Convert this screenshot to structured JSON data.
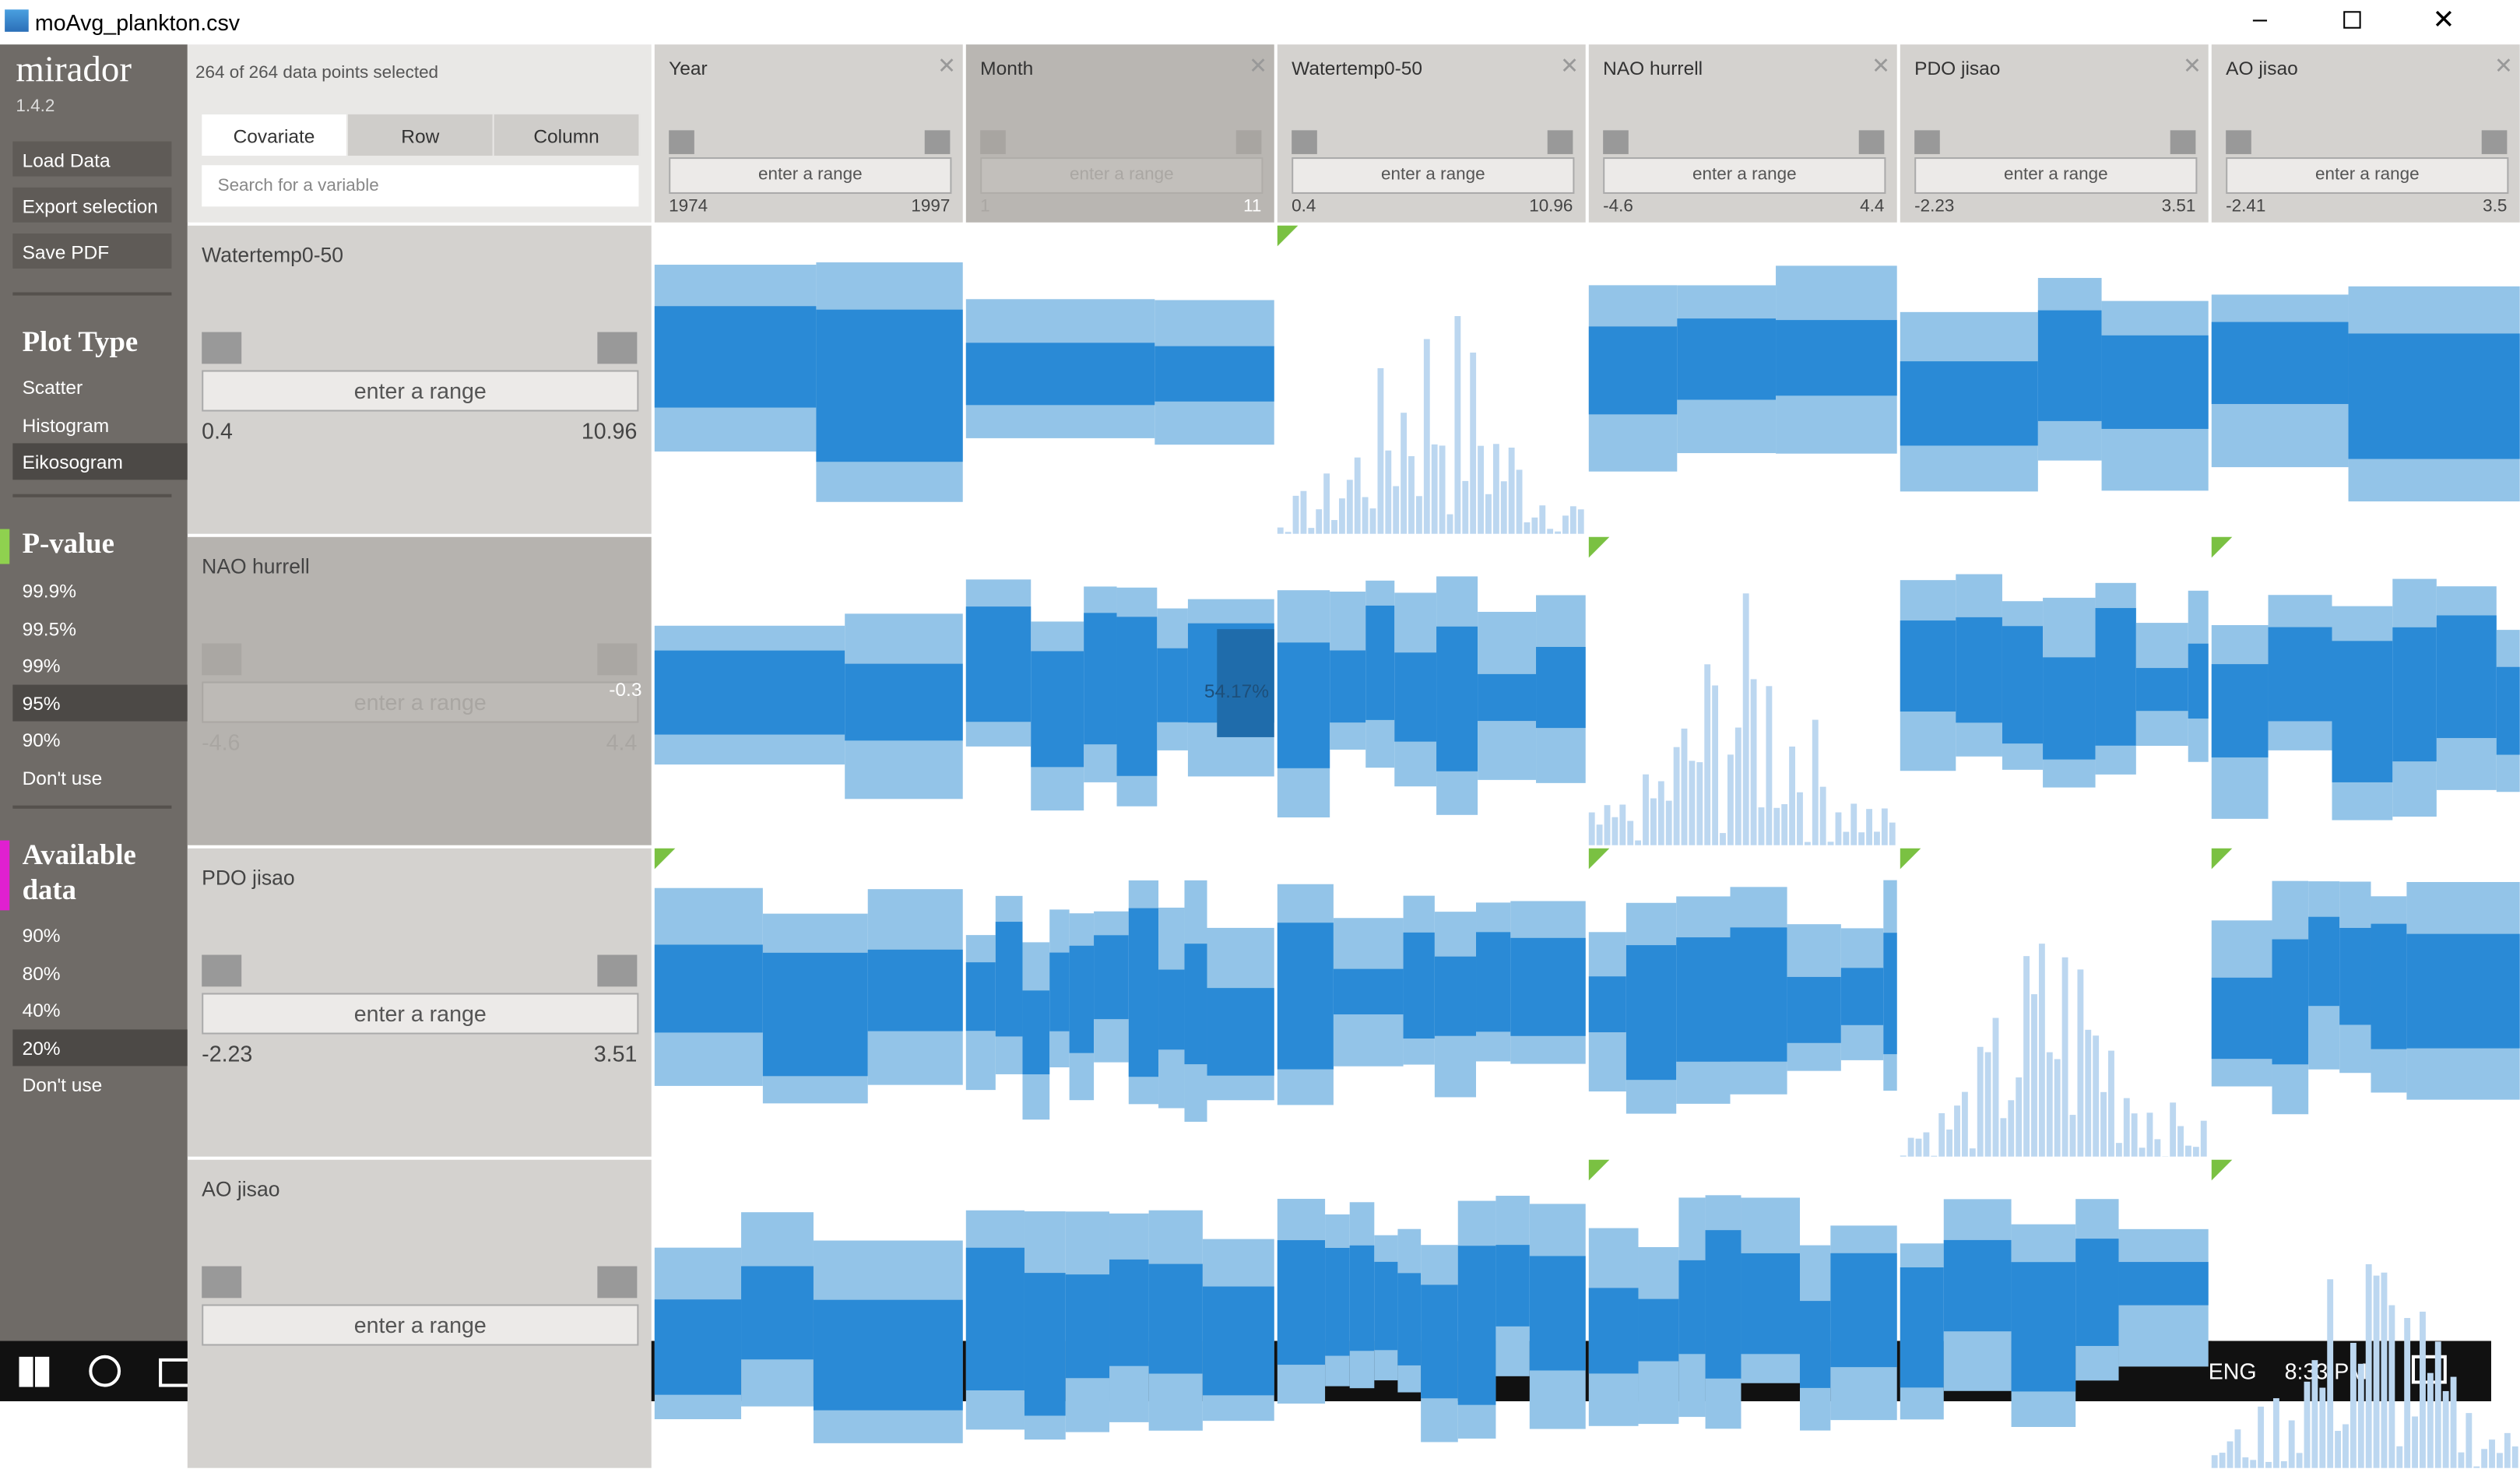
{
  "window": {
    "title": "moAvg_plankton.csv"
  },
  "sidebar": {
    "app_name": "mirador",
    "version": "1.4.2",
    "actions": [
      "Load Data",
      "Export selection",
      "Save PDF"
    ],
    "plot_type": {
      "title": "Plot Type",
      "options": [
        "Scatter",
        "Histogram",
        "Eikosogram"
      ]
    },
    "p_value": {
      "title": "P-value",
      "options": [
        "99.9%",
        "99.5%",
        "99%",
        "95%",
        "90%",
        "Don't use"
      ]
    },
    "available_data": {
      "title": "Available data",
      "options": [
        "90%",
        "80%",
        "40%",
        "20%",
        "Don't use"
      ]
    }
  },
  "selection_status": "264 of 264 data points selected",
  "tabs": [
    "Covariate",
    "Row",
    "Column"
  ],
  "search_placeholder": "Search for a variable",
  "range_placeholder": "enter a range",
  "columns": [
    {
      "name": "Year",
      "min": 1974,
      "max": 1997
    },
    {
      "name": "Month",
      "min": 1,
      "max": 11
    },
    {
      "name": "Watertemp0-50",
      "min": 0.4,
      "max": 10.96
    },
    {
      "name": "NAO hurrell",
      "min": -4.6,
      "max": 4.4
    },
    {
      "name": "PDO jisao",
      "min": -2.23,
      "max": 3.51
    },
    {
      "name": "AO jisao",
      "min": -2.41,
      "max": "3.5"
    }
  ],
  "rows": [
    {
      "name": "Watertemp0-50",
      "min": 0.4,
      "max": 10.96
    },
    {
      "name": "NAO hurrell",
      "min": -4.6,
      "max": 4.4,
      "marker": -0.3
    },
    {
      "name": "PDO jisao",
      "min": -2.23,
      "max": 3.51
    },
    {
      "name": "AO jisao"
    }
  ],
  "cell_label": "54.17%",
  "taskbar": {
    "language": "ENG",
    "time": "8:33 PM"
  }
}
